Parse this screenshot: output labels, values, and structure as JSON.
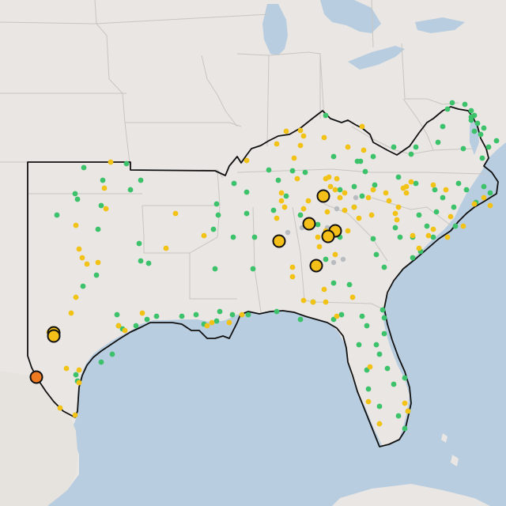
{
  "map": {
    "colors": {
      "water": "#b8cde0",
      "land": "#e9e6e3",
      "land_border": "#c9c5c1",
      "region_outline": "#111111",
      "dot_green": "#3cc26a",
      "dot_yellow": "#f2c316",
      "marker_yellow": "#f5bf1a",
      "marker_orange": "#ee7a22",
      "dot_gray": "#b8bcc0"
    },
    "markers": [
      {
        "name": "marker-north-georgia-1",
        "color": "marker_yellow"
      },
      {
        "name": "marker-north-alabama",
        "color": "marker_yellow"
      },
      {
        "name": "marker-north-georgia-2",
        "color": "marker_yellow"
      },
      {
        "name": "marker-north-georgia-3",
        "color": "marker_yellow"
      },
      {
        "name": "marker-central-alabama",
        "color": "marker_yellow"
      },
      {
        "name": "marker-southern-alabama",
        "color": "marker_yellow"
      },
      {
        "name": "marker-west-texas-1",
        "color": "marker_yellow"
      },
      {
        "name": "marker-west-texas-2",
        "color": "marker_yellow"
      },
      {
        "name": "marker-south-texas-border",
        "color": "marker_orange"
      }
    ]
  }
}
